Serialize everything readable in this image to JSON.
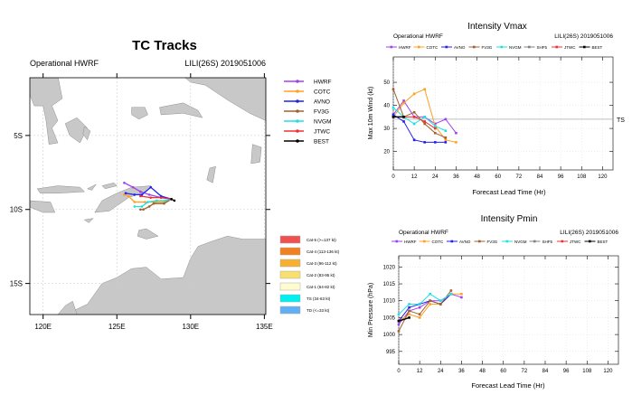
{
  "chart_data": [
    {
      "type": "map-tracks",
      "title": "TC Tracks",
      "subtitle_left": "Operational HWRF",
      "subtitle_right": "LILI(26S) 2019051006",
      "xlim": [
        119.1,
        135.1
      ],
      "ylim": [
        -17.1,
        -1.1
      ],
      "x_ticks": [
        {
          "v": 120,
          "label": "120E"
        },
        {
          "v": 125,
          "label": "125E"
        },
        {
          "v": 130,
          "label": "130E"
        },
        {
          "v": 135,
          "label": "135E"
        }
      ],
      "y_ticks": [
        {
          "v": -5,
          "label": "5S"
        },
        {
          "v": -10,
          "label": "10S"
        },
        {
          "v": -15,
          "label": "15S"
        }
      ],
      "grid": true,
      "series": [
        {
          "name": "HWRF",
          "color": "#a040f0",
          "points": [
            [
              128.7,
              -9.3
            ],
            [
              128.0,
              -9.2
            ],
            [
              127.2,
              -9.0
            ],
            [
              126.6,
              -8.8
            ],
            [
              126.1,
              -8.5
            ],
            [
              125.5,
              -8.2
            ]
          ]
        },
        {
          "name": "COTC",
          "color": "#ffa020",
          "points": [
            [
              128.7,
              -9.3
            ],
            [
              128.2,
              -9.5
            ],
            [
              127.6,
              -9.5
            ],
            [
              126.9,
              -9.5
            ],
            [
              126.2,
              -9.5
            ],
            [
              125.8,
              -9.1
            ],
            [
              125.5,
              -9.0
            ]
          ]
        },
        {
          "name": "AVNO",
          "color": "#2020f0",
          "points": [
            [
              128.7,
              -9.3
            ],
            [
              128.0,
              -9.1
            ],
            [
              127.3,
              -8.5
            ],
            [
              126.7,
              -9.0
            ],
            [
              126.2,
              -9.0
            ],
            [
              125.6,
              -8.9
            ]
          ]
        },
        {
          "name": "FV3G",
          "color": "#a06030",
          "points": [
            [
              128.7,
              -9.3
            ],
            [
              128.2,
              -9.6
            ],
            [
              127.5,
              -9.6
            ],
            [
              127.2,
              -9.8
            ],
            [
              126.8,
              -10.0
            ],
            [
              126.6,
              -10.0
            ]
          ]
        },
        {
          "name": "NVGM",
          "color": "#20e0e0",
          "points": [
            [
              128.7,
              -9.3
            ],
            [
              128.3,
              -9.4
            ],
            [
              127.7,
              -9.4
            ],
            [
              127.1,
              -9.5
            ],
            [
              126.7,
              -9.8
            ],
            [
              126.2,
              -9.8
            ]
          ]
        },
        {
          "name": "JTWC",
          "color": "#f03030",
          "points": [
            [
              128.7,
              -9.3
            ],
            [
              128.0,
              -9.2
            ],
            [
              127.3,
              -9.2
            ],
            [
              126.6,
              -9.1
            ]
          ]
        },
        {
          "name": "BEST",
          "color": "#000000",
          "points": [
            [
              128.9,
              -9.4
            ],
            [
              128.7,
              -9.3
            ]
          ]
        }
      ],
      "category_legend": [
        {
          "label": "Cat-5 (>=137 kt)",
          "color": "#f05050"
        },
        {
          "label": "Cat-4 (113-136 kt)",
          "color": "#f08020"
        },
        {
          "label": "Cat-3 (96-112 kt)",
          "color": "#f8b030"
        },
        {
          "label": "Cat-2 (83-95 kt)",
          "color": "#f8e070"
        },
        {
          "label": "Cat-1 (64-82 kt)",
          "color": "#fffcd0"
        },
        {
          "label": "TS (34-63 kt)",
          "color": "#00f0f0"
        },
        {
          "label": "TD (<=33 kt)",
          "color": "#60b0f8"
        }
      ]
    },
    {
      "type": "line",
      "title": "Intensity Vmax",
      "subtitle_left": "Operational HWRF",
      "subtitle_right": "LILI(26S) 2019051006",
      "xlabel": "Forecast Lead Time (Hr)",
      "ylabel": "Max 10m Wind (kt)",
      "xlim": [
        0,
        126
      ],
      "ylim": [
        12,
        61
      ],
      "x_ticks": [
        0,
        12,
        24,
        36,
        48,
        60,
        72,
        84,
        96,
        108,
        120
      ],
      "y_ticks": [
        20,
        30,
        40,
        50
      ],
      "reference_line": {
        "value": 34,
        "label": "TS"
      },
      "series": [
        {
          "name": "HWRF",
          "color": "#a040f0",
          "x": [
            0,
            6,
            12,
            18,
            24,
            30,
            36
          ],
          "y": [
            36,
            42,
            35,
            35,
            32,
            34,
            28
          ]
        },
        {
          "name": "COTC",
          "color": "#ffa020",
          "x": [
            0,
            6,
            12,
            18,
            24,
            30,
            36
          ],
          "y": [
            35,
            41,
            45,
            47,
            31,
            25,
            24
          ]
        },
        {
          "name": "AVNO",
          "color": "#2020f0",
          "x": [
            0,
            6,
            12,
            18,
            24,
            30
          ],
          "y": [
            36,
            33,
            25,
            24,
            24,
            24
          ]
        },
        {
          "name": "FV3G",
          "color": "#a06030",
          "x": [
            0,
            6,
            12,
            18,
            24,
            30
          ],
          "y": [
            47,
            35,
            37,
            32,
            28,
            26
          ]
        },
        {
          "name": "NVGM",
          "color": "#20e0e0",
          "x": [
            0,
            6,
            12,
            18,
            24,
            30
          ],
          "y": [
            39,
            35,
            32,
            35,
            31,
            29
          ]
        },
        {
          "name": "SHF5",
          "color": "#808080",
          "x": [
            0,
            6
          ],
          "y": [
            35,
            35
          ]
        },
        {
          "name": "JTWC",
          "color": "#f03030",
          "x": [
            0,
            6,
            12,
            18,
            24
          ],
          "y": [
            35,
            35,
            35,
            33,
            30
          ]
        },
        {
          "name": "BEST",
          "color": "#000000",
          "x": [
            0,
            6
          ],
          "y": [
            35,
            35
          ]
        }
      ]
    },
    {
      "type": "line",
      "title": "Intensity Pmin",
      "subtitle_left": "Operational HWRF",
      "subtitle_right": "LILI(26S) 2019051006",
      "xlabel": "Forecast Lead Time (Hr)",
      "ylabel": "Min Pressure (hPa)",
      "xlim": [
        0,
        126
      ],
      "ylim": [
        991.2,
        1023.3
      ],
      "x_ticks": [
        0,
        12,
        24,
        36,
        48,
        60,
        72,
        84,
        96,
        108,
        120
      ],
      "y_ticks": [
        995,
        1000,
        1005,
        1010,
        1015,
        1020
      ],
      "series": [
        {
          "name": "HWRF",
          "color": "#a040f0",
          "x": [
            0,
            6,
            12,
            18,
            24,
            30,
            36
          ],
          "y": [
            1003,
            1007,
            1008,
            1010,
            1010,
            1012,
            1011
          ]
        },
        {
          "name": "COTC",
          "color": "#ffa020",
          "x": [
            0,
            6,
            12,
            18,
            24,
            30,
            36
          ],
          "y": [
            1004,
            1006,
            1005,
            1009,
            1009,
            1012,
            1012
          ]
        },
        {
          "name": "AVNO",
          "color": "#2020f0",
          "x": [
            0,
            6,
            12,
            18,
            24,
            30
          ],
          "y": [
            1004,
            1008,
            1009,
            1010,
            1009,
            1012
          ]
        },
        {
          "name": "FV3G",
          "color": "#a06030",
          "x": [
            0,
            6,
            12,
            18,
            24,
            30
          ],
          "y": [
            1001,
            1007,
            1006,
            1010,
            1009,
            1013
          ]
        },
        {
          "name": "NVGM",
          "color": "#20e0e0",
          "x": [
            0,
            6,
            12,
            18,
            24,
            30
          ],
          "y": [
            1006,
            1009,
            1009,
            1012,
            1010,
            1012
          ]
        },
        {
          "name": "SHF5",
          "color": "#808080",
          "x": [],
          "y": []
        },
        {
          "name": "JTWC",
          "color": "#f03030",
          "x": [],
          "y": []
        },
        {
          "name": "BEST",
          "color": "#000000",
          "x": [
            0,
            6
          ],
          "y": [
            1004,
            1005
          ]
        }
      ]
    }
  ]
}
